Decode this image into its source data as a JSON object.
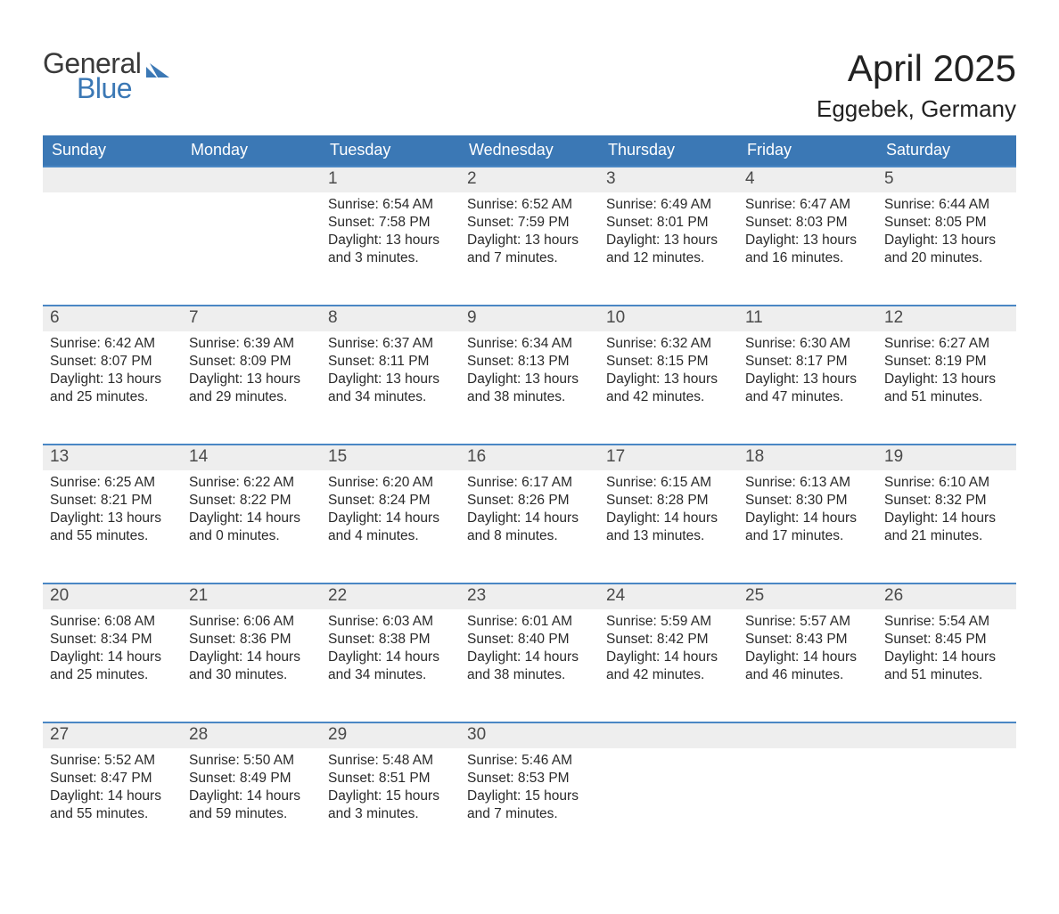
{
  "colors": {
    "header_bg": "#3b78b5",
    "divider": "#4a87c4",
    "date_bg": "#eeeeee",
    "text": "#2a2a2a",
    "page_bg": "#ffffff",
    "logo_blue": "#3b78b5"
  },
  "logo": {
    "line1": "General",
    "line2": "Blue"
  },
  "title": "April 2025",
  "location": "Eggebek, Germany",
  "day_names": [
    "Sunday",
    "Monday",
    "Tuesday",
    "Wednesday",
    "Thursday",
    "Friday",
    "Saturday"
  ],
  "labels": {
    "sunrise": "Sunrise: ",
    "sunset": "Sunset: ",
    "daylight": "Daylight: "
  },
  "weeks": [
    [
      {
        "date": "",
        "sunrise": "",
        "sunset": "",
        "daylight": ""
      },
      {
        "date": "",
        "sunrise": "",
        "sunset": "",
        "daylight": ""
      },
      {
        "date": "1",
        "sunrise": "6:54 AM",
        "sunset": "7:58 PM",
        "daylight": "13 hours and 3 minutes."
      },
      {
        "date": "2",
        "sunrise": "6:52 AM",
        "sunset": "7:59 PM",
        "daylight": "13 hours and 7 minutes."
      },
      {
        "date": "3",
        "sunrise": "6:49 AM",
        "sunset": "8:01 PM",
        "daylight": "13 hours and 12 minutes."
      },
      {
        "date": "4",
        "sunrise": "6:47 AM",
        "sunset": "8:03 PM",
        "daylight": "13 hours and 16 minutes."
      },
      {
        "date": "5",
        "sunrise": "6:44 AM",
        "sunset": "8:05 PM",
        "daylight": "13 hours and 20 minutes."
      }
    ],
    [
      {
        "date": "6",
        "sunrise": "6:42 AM",
        "sunset": "8:07 PM",
        "daylight": "13 hours and 25 minutes."
      },
      {
        "date": "7",
        "sunrise": "6:39 AM",
        "sunset": "8:09 PM",
        "daylight": "13 hours and 29 minutes."
      },
      {
        "date": "8",
        "sunrise": "6:37 AM",
        "sunset": "8:11 PM",
        "daylight": "13 hours and 34 minutes."
      },
      {
        "date": "9",
        "sunrise": "6:34 AM",
        "sunset": "8:13 PM",
        "daylight": "13 hours and 38 minutes."
      },
      {
        "date": "10",
        "sunrise": "6:32 AM",
        "sunset": "8:15 PM",
        "daylight": "13 hours and 42 minutes."
      },
      {
        "date": "11",
        "sunrise": "6:30 AM",
        "sunset": "8:17 PM",
        "daylight": "13 hours and 47 minutes."
      },
      {
        "date": "12",
        "sunrise": "6:27 AM",
        "sunset": "8:19 PM",
        "daylight": "13 hours and 51 minutes."
      }
    ],
    [
      {
        "date": "13",
        "sunrise": "6:25 AM",
        "sunset": "8:21 PM",
        "daylight": "13 hours and 55 minutes."
      },
      {
        "date": "14",
        "sunrise": "6:22 AM",
        "sunset": "8:22 PM",
        "daylight": "14 hours and 0 minutes."
      },
      {
        "date": "15",
        "sunrise": "6:20 AM",
        "sunset": "8:24 PM",
        "daylight": "14 hours and 4 minutes."
      },
      {
        "date": "16",
        "sunrise": "6:17 AM",
        "sunset": "8:26 PM",
        "daylight": "14 hours and 8 minutes."
      },
      {
        "date": "17",
        "sunrise": "6:15 AM",
        "sunset": "8:28 PM",
        "daylight": "14 hours and 13 minutes."
      },
      {
        "date": "18",
        "sunrise": "6:13 AM",
        "sunset": "8:30 PM",
        "daylight": "14 hours and 17 minutes."
      },
      {
        "date": "19",
        "sunrise": "6:10 AM",
        "sunset": "8:32 PM",
        "daylight": "14 hours and 21 minutes."
      }
    ],
    [
      {
        "date": "20",
        "sunrise": "6:08 AM",
        "sunset": "8:34 PM",
        "daylight": "14 hours and 25 minutes."
      },
      {
        "date": "21",
        "sunrise": "6:06 AM",
        "sunset": "8:36 PM",
        "daylight": "14 hours and 30 minutes."
      },
      {
        "date": "22",
        "sunrise": "6:03 AM",
        "sunset": "8:38 PM",
        "daylight": "14 hours and 34 minutes."
      },
      {
        "date": "23",
        "sunrise": "6:01 AM",
        "sunset": "8:40 PM",
        "daylight": "14 hours and 38 minutes."
      },
      {
        "date": "24",
        "sunrise": "5:59 AM",
        "sunset": "8:42 PM",
        "daylight": "14 hours and 42 minutes."
      },
      {
        "date": "25",
        "sunrise": "5:57 AM",
        "sunset": "8:43 PM",
        "daylight": "14 hours and 46 minutes."
      },
      {
        "date": "26",
        "sunrise": "5:54 AM",
        "sunset": "8:45 PM",
        "daylight": "14 hours and 51 minutes."
      }
    ],
    [
      {
        "date": "27",
        "sunrise": "5:52 AM",
        "sunset": "8:47 PM",
        "daylight": "14 hours and 55 minutes."
      },
      {
        "date": "28",
        "sunrise": "5:50 AM",
        "sunset": "8:49 PM",
        "daylight": "14 hours and 59 minutes."
      },
      {
        "date": "29",
        "sunrise": "5:48 AM",
        "sunset": "8:51 PM",
        "daylight": "15 hours and 3 minutes."
      },
      {
        "date": "30",
        "sunrise": "5:46 AM",
        "sunset": "8:53 PM",
        "daylight": "15 hours and 7 minutes."
      },
      {
        "date": "",
        "sunrise": "",
        "sunset": "",
        "daylight": ""
      },
      {
        "date": "",
        "sunrise": "",
        "sunset": "",
        "daylight": ""
      },
      {
        "date": "",
        "sunrise": "",
        "sunset": "",
        "daylight": ""
      }
    ]
  ]
}
